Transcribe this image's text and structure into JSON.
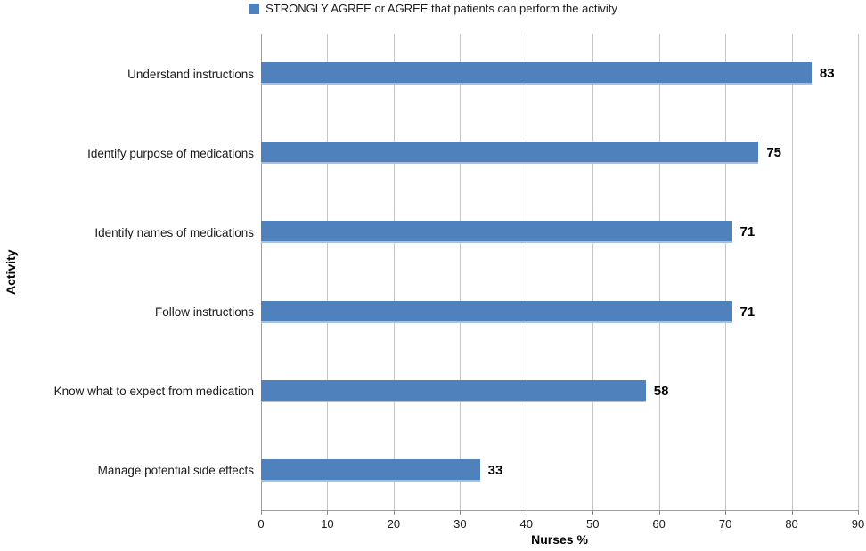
{
  "legend": {
    "label": "STRONGLY AGREE or AGREE that patients can perform the activity"
  },
  "colors": {
    "bar": "#4f81bd",
    "bar_bottom_edge": "#a7c0de",
    "gridline": "#c6c6c6",
    "axis_line": "#9e9e9e",
    "tick_mark": "#8c8c8c",
    "text": "#1a1a1a"
  },
  "chart_data": {
    "type": "bar",
    "orientation": "horizontal",
    "title": "",
    "series_name": "STRONGLY AGREE or AGREE that patients can perform the activity",
    "categories": [
      "Understand instructions",
      "Identify purpose of medications",
      "Identify names of medications",
      "Follow instructions",
      "Know what to expect from medication",
      "Manage potential side effects"
    ],
    "values": [
      83,
      75,
      71,
      71,
      58,
      33
    ],
    "data_labels": [
      83,
      75,
      71,
      71,
      58,
      33
    ],
    "xlabel": "Nurses %",
    "ylabel": "Activity",
    "xlim": [
      0,
      90
    ],
    "xticks": [
      0,
      10,
      20,
      30,
      40,
      50,
      60,
      70,
      80,
      90
    ],
    "grid": true,
    "legend_position": "top"
  }
}
